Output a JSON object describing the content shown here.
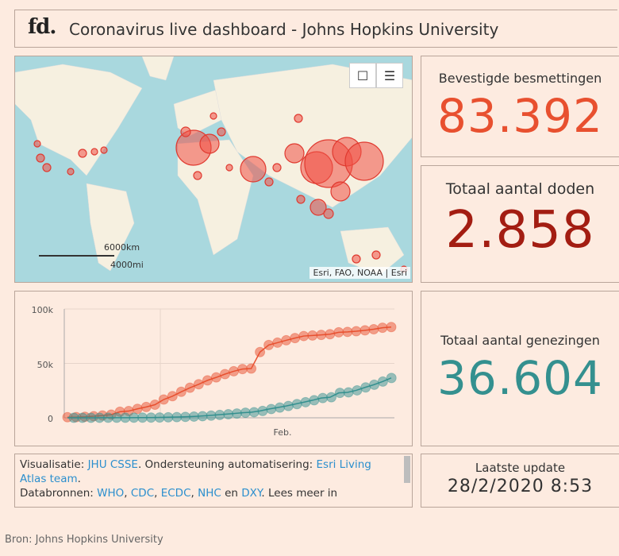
{
  "header": {
    "logo": "fd.",
    "title": "Coronavirus live dashboard - Johns Hopkins University"
  },
  "map": {
    "scale_km": "6000km",
    "scale_mi": "4000mi",
    "attribution": "Esri, FAO, NOAA | Esri",
    "icons": [
      "bookmark-icon",
      "legend-list-icon"
    ]
  },
  "stats": {
    "confirmed": {
      "label": "Bevestigde besmettingen",
      "value": "83.392",
      "color": "#e8502f"
    },
    "deaths": {
      "label": "Totaal aantal doden",
      "value": "2.858",
      "color": "#a31d12"
    },
    "recovered": {
      "label": "Totaal aantal genezingen",
      "value": "36.604",
      "color": "#34908f"
    },
    "update": {
      "label": "Laatste update",
      "value": "28/2/2020 8:53"
    }
  },
  "credits": {
    "p1": "Visualisatie: ",
    "l1": "JHU CSSE",
    "p2": ". Ondersteuning automatisering: ",
    "l2": "Esri Living Atlas team",
    "p3": ".",
    "p4": "Databronnen: ",
    "l3": "WHO",
    "l4": "CDC",
    "l5": "ECDC",
    "l6": "NHC",
    "p5": " en ",
    "l7": "DXY",
    "p6": ". Lees meer in"
  },
  "footer": "Bron: Johns Hopkins University",
  "chart_data": {
    "type": "line",
    "yticks": [
      "0",
      "50k",
      "100k"
    ],
    "ylim": [
      0,
      100000
    ],
    "xtick": "Feb.",
    "grid": true,
    "series": [
      {
        "color": "#e8502f",
        "values": [
          555,
          654,
          941,
          1434,
          2118,
          2927,
          5578,
          6166,
          8234,
          9927,
          12038,
          16787,
          19881,
          23892,
          27635,
          30817,
          34391,
          37120,
          40150,
          42762,
          44802,
          45221,
          60368,
          66885,
          69030,
          71224,
          73258,
          75136,
          75639,
          76197,
          76819,
          78572,
          78958,
          79561,
          80406,
          81388,
          82746,
          83392
        ]
      },
      {
        "color": "#34908f",
        "values": [
          28,
          30,
          36,
          39,
          52,
          61,
          107,
          126,
          143,
          222,
          284,
          472,
          623,
          852,
          1124,
          1487,
          2011,
          2616,
          3244,
          3946,
          4683,
          5150,
          6295,
          8058,
          9395,
          10865,
          12583,
          14352,
          16121,
          18177,
          18890,
          22886,
          23394,
          25227,
          27905,
          30384,
          33277,
          36604
        ]
      }
    ]
  }
}
